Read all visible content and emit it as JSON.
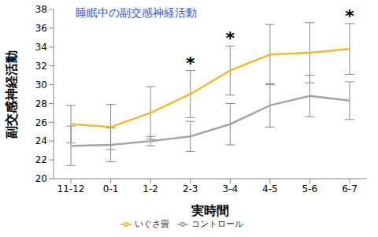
{
  "chart_data": {
    "type": "line",
    "title": "睡眠中の副交感神経活動",
    "x_label": "実時間",
    "y_label": "副交感神経活動",
    "categories": [
      "11-12",
      "0-1",
      "1-2",
      "2-3",
      "3-4",
      "4-5",
      "5-6",
      "6-7"
    ],
    "series": [
      {
        "name": "コントロール",
        "color": "#a6a6a6",
        "values": [
          23.5,
          23.6,
          24.0,
          24.5,
          25.8,
          27.8,
          28.8,
          28.3
        ],
        "error": [
          2.1,
          1.8,
          0.5,
          1.6,
          2.2,
          2.3,
          2.2,
          2.0
        ]
      },
      {
        "name": "いぐさ畳",
        "color": "#f5b82e",
        "values": [
          25.8,
          25.5,
          27.0,
          29.0,
          31.5,
          33.2,
          33.4,
          33.8
        ],
        "error": [
          2.0,
          2.4,
          2.8,
          2.5,
          2.6,
          3.2,
          3.2,
          2.7
        ]
      }
    ],
    "ylim": [
      20,
      38
    ],
    "yticks": [
      20,
      22,
      24,
      26,
      28,
      30,
      32,
      34,
      36,
      38
    ],
    "grid": false,
    "legend": "bottom",
    "annotations": [
      {
        "text": "*",
        "category": "2-3",
        "y": 32.3
      },
      {
        "text": "*",
        "category": "3-4",
        "y": 35.0
      },
      {
        "text": "*",
        "category": "6-7",
        "y": 37.3
      }
    ]
  }
}
